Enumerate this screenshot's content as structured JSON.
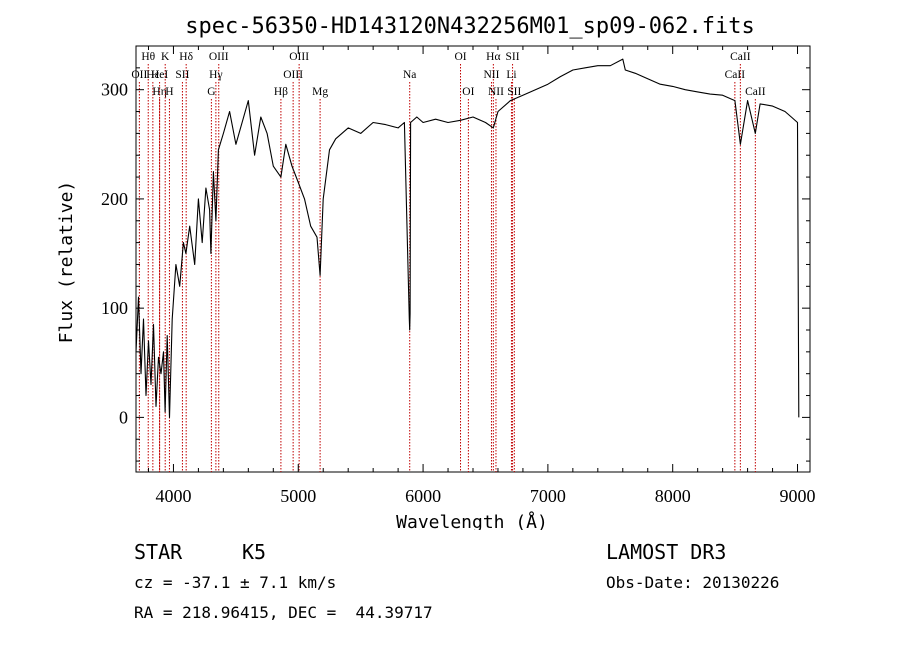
{
  "chart_data": {
    "type": "line",
    "title": "spec-56350-HD143120N432256M01_sp09-062.fits",
    "xlabel": "Wavelength (Å)",
    "ylabel": "Flux (relative)",
    "xlim": [
      3700,
      9100
    ],
    "ylim": [
      -50,
      340
    ],
    "x_ticks": [
      4000,
      5000,
      6000,
      7000,
      8000,
      9000
    ],
    "y_ticks": [
      0,
      100,
      200,
      300
    ],
    "series": [
      {
        "name": "flux",
        "x": [
          3700,
          3720,
          3740,
          3760,
          3780,
          3800,
          3820,
          3840,
          3860,
          3880,
          3900,
          3920,
          3933,
          3950,
          3968,
          3990,
          4020,
          4050,
          4080,
          4100,
          4130,
          4170,
          4200,
          4230,
          4260,
          4290,
          4300,
          4320,
          4340,
          4360,
          4400,
          4450,
          4500,
          4550,
          4600,
          4650,
          4700,
          4750,
          4800,
          4861,
          4900,
          4950,
          5000,
          5050,
          5100,
          5150,
          5175,
          5200,
          5250,
          5300,
          5400,
          5500,
          5600,
          5700,
          5800,
          5850,
          5890,
          5893,
          5896,
          5900,
          5950,
          6000,
          6100,
          6200,
          6300,
          6400,
          6500,
          6563,
          6600,
          6700,
          6800,
          6900,
          7000,
          7100,
          7200,
          7300,
          7400,
          7500,
          7600,
          7620,
          7700,
          7800,
          7900,
          8000,
          8100,
          8200,
          8300,
          8400,
          8498,
          8542,
          8600,
          8662,
          8700,
          8800,
          8900,
          8950,
          9000,
          9010
        ],
        "values": [
          60,
          110,
          40,
          90,
          20,
          70,
          30,
          85,
          10,
          55,
          40,
          60,
          5,
          75,
          0,
          90,
          140,
          120,
          160,
          150,
          175,
          140,
          200,
          160,
          210,
          190,
          150,
          225,
          180,
          245,
          260,
          280,
          250,
          270,
          290,
          240,
          275,
          260,
          230,
          220,
          250,
          230,
          215,
          200,
          175,
          165,
          130,
          200,
          245,
          255,
          265,
          260,
          270,
          268,
          265,
          270,
          90,
          80,
          95,
          270,
          275,
          270,
          273,
          270,
          272,
          275,
          270,
          265,
          280,
          290,
          295,
          300,
          305,
          312,
          318,
          320,
          322,
          322,
          328,
          318,
          315,
          310,
          305,
          303,
          300,
          298,
          296,
          295,
          290,
          250,
          290,
          260,
          287,
          285,
          280,
          275,
          270,
          0
        ]
      }
    ],
    "line_markers": [
      {
        "label": "Hθ",
        "wavelength": 3798,
        "row": 1
      },
      {
        "label": "OII",
        "wavelength": 3727,
        "row": 2
      },
      {
        "label": "Hε",
        "wavelength": 3835,
        "row": 2
      },
      {
        "label": "Hη",
        "wavelength": 3889,
        "row": 3
      },
      {
        "label": "K",
        "wavelength": 3934,
        "row": 1
      },
      {
        "label": "HeI",
        "wavelength": 3889,
        "row": 2
      },
      {
        "label": "H",
        "wavelength": 3968,
        "row": 3
      },
      {
        "label": "Hδ",
        "wavelength": 4102,
        "row": 1
      },
      {
        "label": "SII",
        "wavelength": 4072,
        "row": 2
      },
      {
        "label": "OIII",
        "wavelength": 4363,
        "row": 1
      },
      {
        "label": "Hγ",
        "wavelength": 4340,
        "row": 2
      },
      {
        "label": "G",
        "wavelength": 4304,
        "row": 3
      },
      {
        "label": "Hβ",
        "wavelength": 4861,
        "row": 3
      },
      {
        "label": "OIII",
        "wavelength": 5007,
        "row": 1
      },
      {
        "label": "OIII",
        "wavelength": 4959,
        "row": 2
      },
      {
        "label": "Mg",
        "wavelength": 5175,
        "row": 3
      },
      {
        "label": "Na",
        "wavelength": 5893,
        "row": 2
      },
      {
        "label": "OI",
        "wavelength": 6300,
        "row": 1
      },
      {
        "label": "OI",
        "wavelength": 6363,
        "row": 3
      },
      {
        "label": "Hα",
        "wavelength": 6563,
        "row": 1
      },
      {
        "label": "SII",
        "wavelength": 6717,
        "row": 1
      },
      {
        "label": "NII",
        "wavelength": 6548,
        "row": 2
      },
      {
        "label": "Li",
        "wavelength": 6708,
        "row": 2
      },
      {
        "label": "NII",
        "wavelength": 6584,
        "row": 3
      },
      {
        "label": "SII",
        "wavelength": 6731,
        "row": 3
      },
      {
        "label": "CaII",
        "wavelength": 8542,
        "row": 1
      },
      {
        "label": "CaII",
        "wavelength": 8498,
        "row": 2
      },
      {
        "label": "CaII",
        "wavelength": 8662,
        "row": 3
      }
    ]
  },
  "info": {
    "object_class": "STAR",
    "subclass": "K5",
    "survey": "LAMOST DR3",
    "redshift": "cz = -37.1 ± 7.1 km/s",
    "obs_date": "Obs-Date: 20130226",
    "coords": "RA = 218.96415, DEC =  44.39717"
  }
}
